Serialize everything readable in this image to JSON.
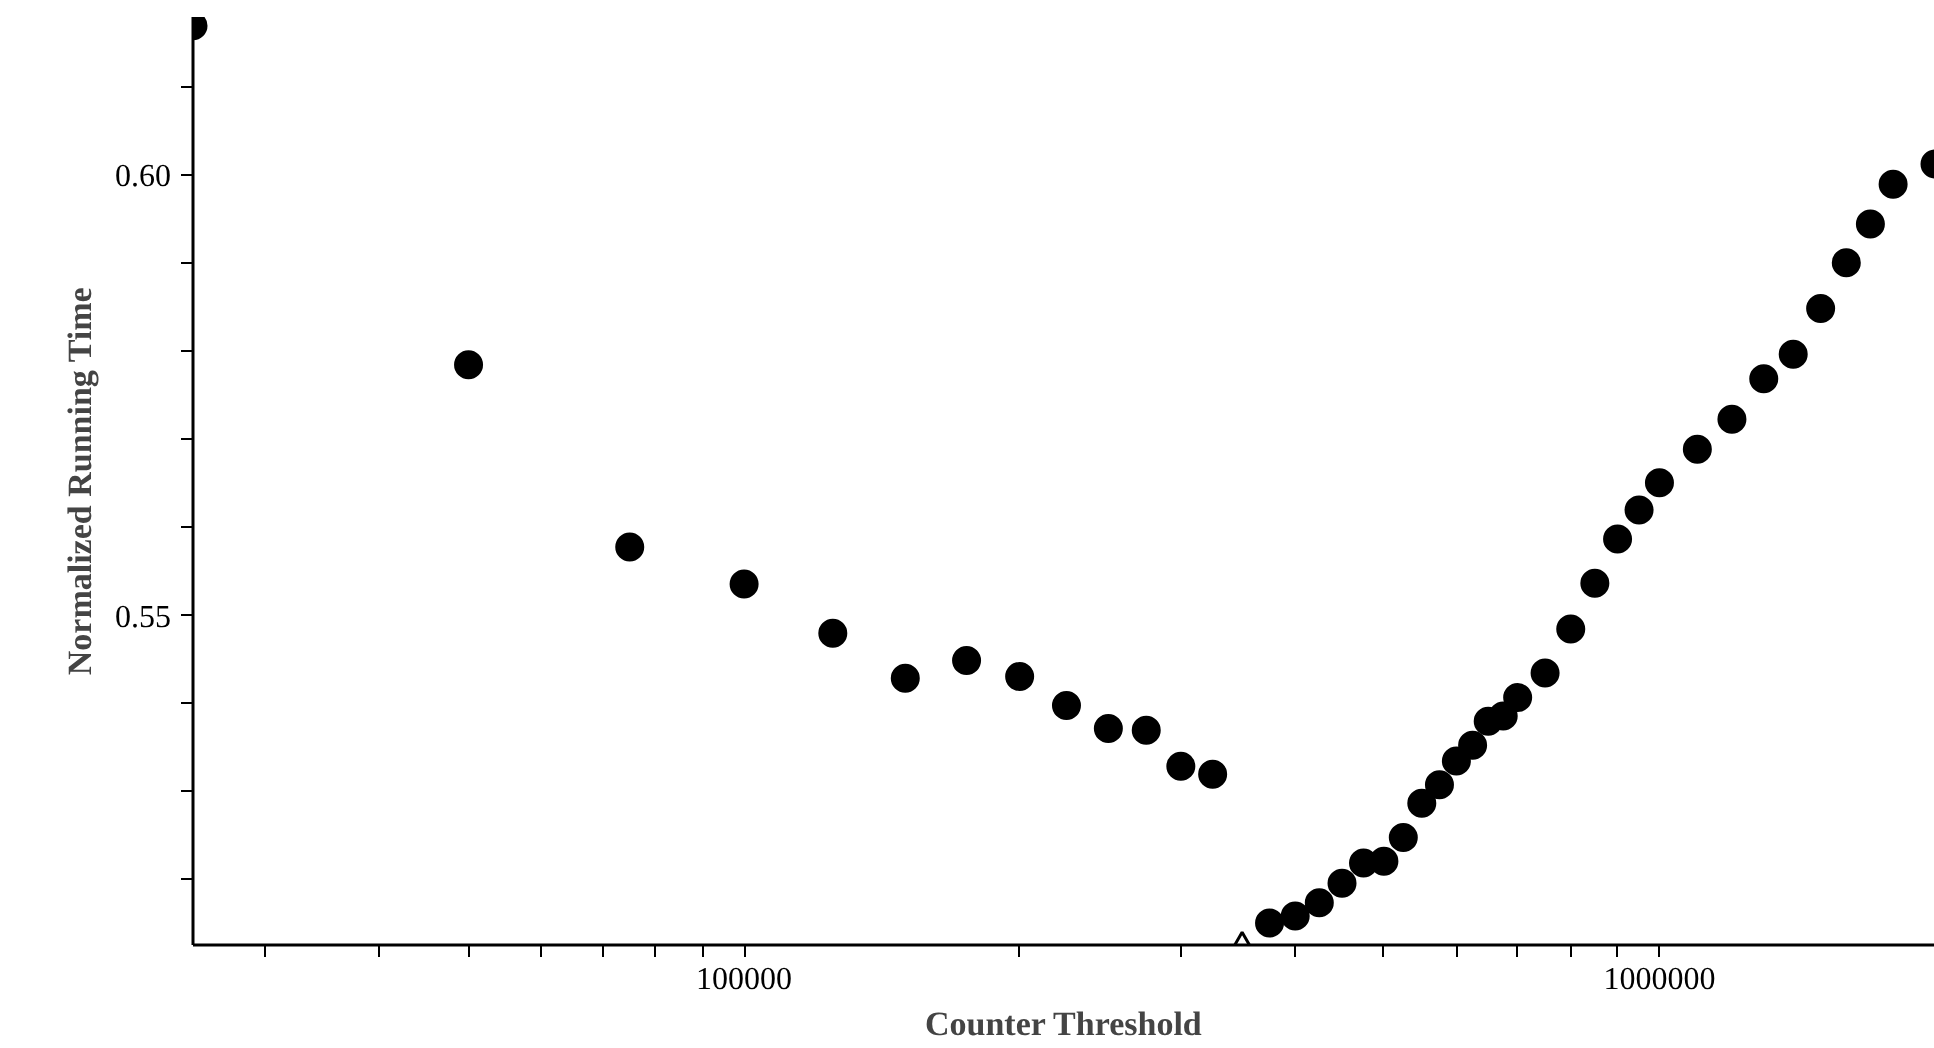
{
  "chart_data": {
    "type": "scatter",
    "xlabel": "Counter Threshold",
    "ylabel": "Normalized Running Time",
    "log": "x",
    "xlim": [
      25000,
      2000000
    ],
    "ylim": [
      0.5126,
      0.618
    ],
    "xticks": [
      {
        "value": 30000,
        "label": null
      },
      {
        "value": 40000,
        "label": null
      },
      {
        "value": 50000,
        "label": null
      },
      {
        "value": 60000,
        "label": null
      },
      {
        "value": 70000,
        "label": null
      },
      {
        "value": 80000,
        "label": null
      },
      {
        "value": 90000,
        "label": null
      },
      100000,
      {
        "value": 200000,
        "label": null
      },
      {
        "value": 300000,
        "label": null
      },
      {
        "value": 400000,
        "label": null
      },
      {
        "value": 500000,
        "label": null
      },
      {
        "value": 600000,
        "label": null
      },
      {
        "value": 700000,
        "label": null
      },
      {
        "value": 800000,
        "label": null
      },
      {
        "value": 900000,
        "label": null
      },
      1000000
    ],
    "yticks": [
      {
        "value": 0.52,
        "label": null
      },
      {
        "value": 0.53,
        "label": null
      },
      {
        "value": 0.54,
        "label": null
      },
      0.55,
      {
        "value": 0.56,
        "label": null
      },
      {
        "value": 0.57,
        "label": null
      },
      {
        "value": 0.58,
        "label": null
      },
      {
        "value": 0.59,
        "label": null
      },
      {
        "value": 0.6,
        "label": "0.60"
      },
      {
        "value": 0.61,
        "label": null
      }
    ],
    "series": [
      {
        "color": "#000000",
        "marker": "circle",
        "x": [
          25000,
          50000,
          75000,
          100000,
          125000,
          150000,
          175000,
          200000,
          225000,
          250000,
          275000,
          300000,
          325000,
          375000,
          400000,
          425000,
          450000,
          475000,
          500000,
          525000,
          550000,
          575000,
          600000,
          625000,
          650000,
          675000,
          700000,
          750000,
          800000,
          850000,
          900000,
          950000,
          1000000,
          1100000,
          1200000,
          1300000,
          1400000,
          1500000,
          1600000,
          1700000,
          1800000,
          2000000
        ],
        "values": [
          0.617,
          0.5785,
          0.5578,
          0.5536,
          0.548,
          0.5429,
          0.5449,
          0.5431,
          0.5398,
          0.5372,
          0.537,
          0.5329,
          0.532,
          0.5151,
          0.5159,
          0.5174,
          0.5196,
          0.5219,
          0.5221,
          0.5248,
          0.5287,
          0.5308,
          0.5335,
          0.5353,
          0.538,
          0.5386,
          0.5407,
          0.5435,
          0.5485,
          0.5537,
          0.5587,
          0.562,
          0.5651,
          0.5689,
          0.5723,
          0.5769,
          0.5797,
          0.5849,
          0.5901,
          0.5945,
          0.599,
          0.6013
        ]
      },
      {
        "color": "#000000",
        "marker": "triangle",
        "x": [
          350000
        ],
        "values": [
          0.5126
        ]
      }
    ]
  }
}
